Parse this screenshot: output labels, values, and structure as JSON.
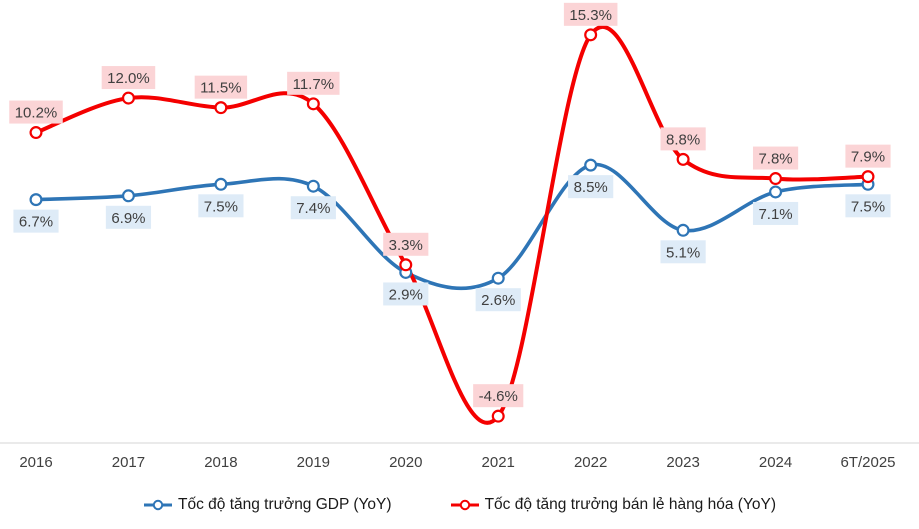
{
  "chart_data": {
    "type": "line",
    "smooth": true,
    "grid": false,
    "legend_position": "bottom",
    "background_color": "#ffffff",
    "axis_line_color": "#d6d6d6",
    "axis_label_color": "#404040",
    "data_label_text_color": "#404040",
    "categories": [
      "2016",
      "2017",
      "2018",
      "2019",
      "2020",
      "2021",
      "2022",
      "2023",
      "2024",
      "6T/2025"
    ],
    "ylim": [
      -6.0,
      16.7
    ],
    "series": [
      {
        "name": "Tốc độ tăng trưởng GDP (YoY)",
        "color": "#2E75B6",
        "label_bg": "#DEEBF7",
        "label_placement": "below",
        "values": [
          6.7,
          6.9,
          7.5,
          7.4,
          2.9,
          2.6,
          8.5,
          5.1,
          7.1,
          7.5
        ],
        "labels": [
          "6.7%",
          "6.9%",
          "7.5%",
          "7.4%",
          "2.9%",
          "2.6%",
          "8.5%",
          "5.1%",
          "7.1%",
          "7.5%"
        ]
      },
      {
        "name": "Tốc độ tăng trưởng bán lẻ hàng hóa (YoY)",
        "color": "#F40000",
        "label_bg": "#FBD4D6",
        "label_placement": "above",
        "values": [
          10.2,
          12.0,
          11.5,
          11.7,
          3.3,
          -4.6,
          15.3,
          8.8,
          7.8,
          7.9
        ],
        "labels": [
          "10.2%",
          "12.0%",
          "11.5%",
          "11.7%",
          "3.3%",
          "-4.6%",
          "15.3%",
          "8.8%",
          "7.8%",
          "7.9%"
        ]
      }
    ]
  }
}
